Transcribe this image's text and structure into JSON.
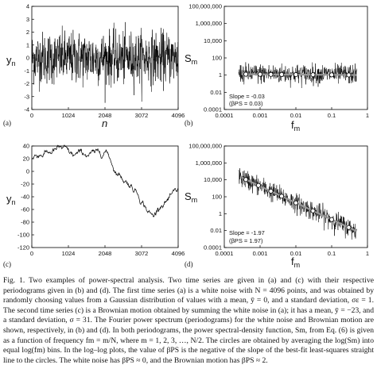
{
  "figure": {
    "panels": [
      {
        "label": "(a)",
        "ylabel": "y",
        "ysub": "n",
        "xlabel": "n",
        "yticks": [
          "4",
          "3",
          "2",
          "1",
          "0",
          "-1",
          "-2",
          "-3",
          "-4"
        ],
        "xticks": [
          "0",
          "1024",
          "2048",
          "3072",
          "4096"
        ]
      },
      {
        "label": "(b)",
        "ylabel": "S",
        "ysub": "m",
        "xlabel": "f",
        "xsub": "m",
        "yticks": [
          "100,000,000",
          "1,000,000",
          "10,000",
          "100",
          "1",
          "0.01",
          "0.0001"
        ],
        "xticks": [
          "0.0001",
          "0.001",
          "0.01",
          "0.1",
          "1"
        ],
        "slope": "Slope = -0.03",
        "beta": "(βPS = 0.03)"
      },
      {
        "label": "(c)",
        "ylabel": "y",
        "ysub": "n",
        "xlabel": "n",
        "yticks": [
          "40",
          "20",
          "0",
          "-20",
          "-40",
          "-60",
          "-80",
          "-100",
          "-120"
        ],
        "xticks": [
          "0",
          "1024",
          "2048",
          "3072",
          "4096"
        ]
      },
      {
        "label": "(d)",
        "ylabel": "S",
        "ysub": "m",
        "xlabel": "f",
        "xsub": "m",
        "yticks": [
          "100,000,000",
          "1,000,000",
          "10,000",
          "100",
          "1",
          "0.01",
          "0.0001"
        ],
        "xticks": [
          "0.0001",
          "0.001",
          "0.01",
          "0.1",
          "1"
        ],
        "slope": "Slope = -1.97",
        "beta": "(βPS = 1.97)"
      }
    ]
  },
  "caption": "Fig. 1. Two examples of power-spectral analysis. Two time series are given in (a) and (c) with their respective periodograms given in (b) and (d). The first time series (a) is a white noise with N = 4096 points, and was obtained by randomly choosing values from a Gaussian distribution of values with a mean, ȳ = 0, and a standard deviation, σε = 1. The second time series (c) is a Brownian motion obtained by summing the white noise in (a); it has a mean, ȳ = −23, and a standard deviation, σ = 31. The Fourier power spectrum (periodograms) for the white noise and Brownian motion are shown, respectively, in (b) and (d). In both periodograms, the power spectral-density function, Sm, from Eq. (6) is given as a function of frequency fm = m/N, where m = 1, 2, 3, …, N/2. The circles are obtained by averaging the log(Sm) into equal log(fm) bins. In the log–log plots, the value of βPS is the negative of the slope of the best-fit least-squares straight line to the circles. The white noise has βPS ≈ 0, and the Brownian motion has βPS ≈ 2."
}
